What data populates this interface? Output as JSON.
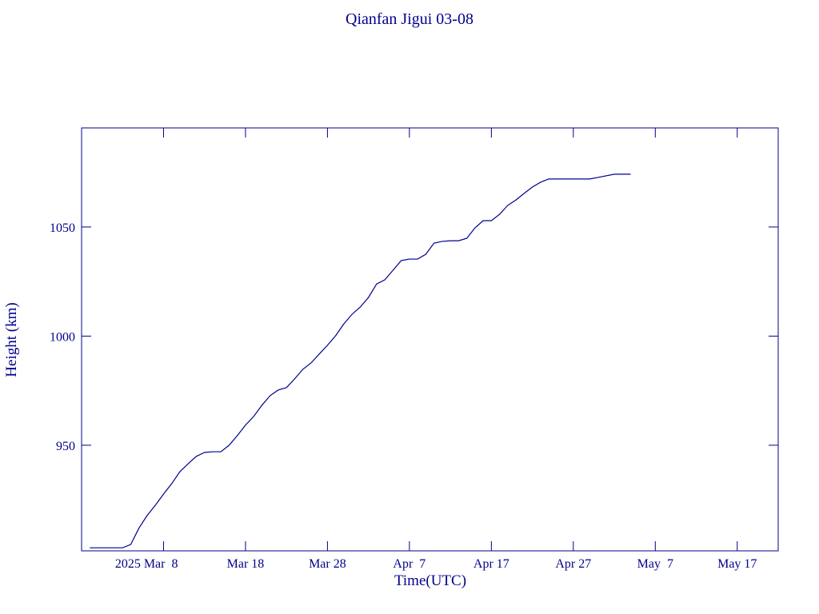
{
  "chart_data": {
    "type": "line",
    "title": "Qianfan Jigui 03-08",
    "x_label": "Time(UTC)",
    "y_label": "Height (km)",
    "x": [
      "2025-02-27",
      "2025-03-03",
      "2025-03-04",
      "2025-03-05",
      "2025-03-06",
      "2025-03-07",
      "2025-03-08",
      "2025-03-09",
      "2025-03-10",
      "2025-03-11",
      "2025-03-12",
      "2025-03-13",
      "2025-03-14",
      "2025-03-15",
      "2025-03-16",
      "2025-03-17",
      "2025-03-18",
      "2025-03-19",
      "2025-03-20",
      "2025-03-21",
      "2025-03-22",
      "2025-03-23",
      "2025-03-24",
      "2025-03-25",
      "2025-03-26",
      "2025-03-27",
      "2025-03-28",
      "2025-03-29",
      "2025-03-30",
      "2025-03-31",
      "2025-04-01",
      "2025-04-02",
      "2025-04-03",
      "2025-04-04",
      "2025-04-05",
      "2025-04-06",
      "2025-04-07",
      "2025-04-08",
      "2025-04-09",
      "2025-04-10",
      "2025-04-11",
      "2025-04-12",
      "2025-04-13",
      "2025-04-14",
      "2025-04-15",
      "2025-04-16",
      "2025-04-17",
      "2025-04-18",
      "2025-04-19",
      "2025-04-20",
      "2025-04-21",
      "2025-04-22",
      "2025-04-23",
      "2025-04-24",
      "2025-04-26",
      "2025-04-29",
      "2025-04-30",
      "2025-05-02",
      "2025-05-04"
    ],
    "series": [
      {
        "color": "#00008b",
        "values": [
          903,
          903,
          904.5,
          912,
          917.8,
          922.5,
          927.6,
          932.4,
          937.9,
          941.5,
          944.9,
          946.7,
          947,
          947,
          950,
          954.4,
          959.2,
          963.2,
          968.3,
          972.7,
          975.3,
          976.4,
          980.4,
          984.8,
          987.7,
          991.8,
          995.8,
          1000.2,
          1005.6,
          1010,
          1013.3,
          1017.7,
          1023.9,
          1025.8,
          1030.2,
          1034.6,
          1035.3,
          1035.3,
          1037.5,
          1042.6,
          1043.4,
          1043.7,
          1043.7,
          1044.8,
          1049.6,
          1052.9,
          1052.9,
          1055.8,
          1059.9,
          1062.4,
          1065.4,
          1068.3,
          1070.5,
          1072,
          1072,
          1072,
          1072.7,
          1074.2,
          1074.2
        ]
      }
    ],
    "xlim": [
      "2025-02-26",
      "2025-05-22"
    ],
    "xticks": [
      {
        "value": "2025-03-08",
        "label": "2025 Mar  8"
      },
      {
        "value": "2025-03-18",
        "label": "Mar 18"
      },
      {
        "value": "2025-03-28",
        "label": "Mar 28"
      },
      {
        "value": "2025-04-07",
        "label": "Apr  7"
      },
      {
        "value": "2025-04-17",
        "label": "Apr 17"
      },
      {
        "value": "2025-04-27",
        "label": "Apr 27"
      },
      {
        "value": "2025-05-07",
        "label": "May  7"
      },
      {
        "value": "2025-05-17",
        "label": "May 17"
      }
    ],
    "ylim": [
      901.6,
      1095.4
    ],
    "yticks": [
      950,
      1000,
      1050
    ]
  }
}
